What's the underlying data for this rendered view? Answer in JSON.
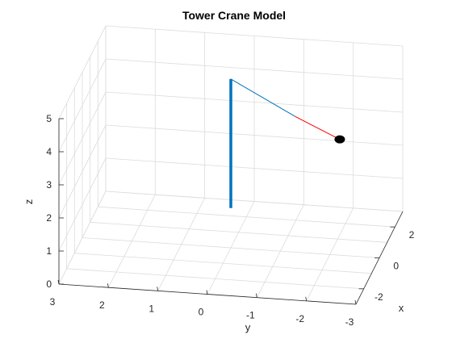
{
  "chart_data": {
    "type": "line",
    "title": "Tower Crane Model",
    "xlabel": "x",
    "ylabel": "y",
    "zlabel": "z",
    "xlim": [
      -3,
      3
    ],
    "ylim": [
      -3,
      3
    ],
    "zlim": [
      0,
      5
    ],
    "xticks": [
      -2,
      0,
      2
    ],
    "yticks": [
      3,
      2,
      1,
      0,
      -1,
      -2,
      -3
    ],
    "zticks": [
      0,
      1,
      2,
      3,
      4,
      5
    ],
    "grid": true,
    "series": [
      {
        "role": "tower",
        "color": "#0072BD",
        "points": [
          [
            0,
            0,
            1.2
          ],
          [
            0,
            0,
            5.1
          ]
        ]
      },
      {
        "role": "jib",
        "color": "#0072BD",
        "points": [
          [
            0,
            0,
            5.1
          ],
          [
            0,
            -1.3,
            4.1
          ]
        ]
      },
      {
        "role": "cable",
        "color": "#ff0000",
        "points": [
          [
            0,
            -1.3,
            4.1
          ],
          [
            0,
            -2.2,
            3.5
          ]
        ]
      },
      {
        "role": "load",
        "color": "#000000",
        "points": [
          [
            0,
            -2.2,
            3.5
          ]
        ]
      }
    ]
  }
}
